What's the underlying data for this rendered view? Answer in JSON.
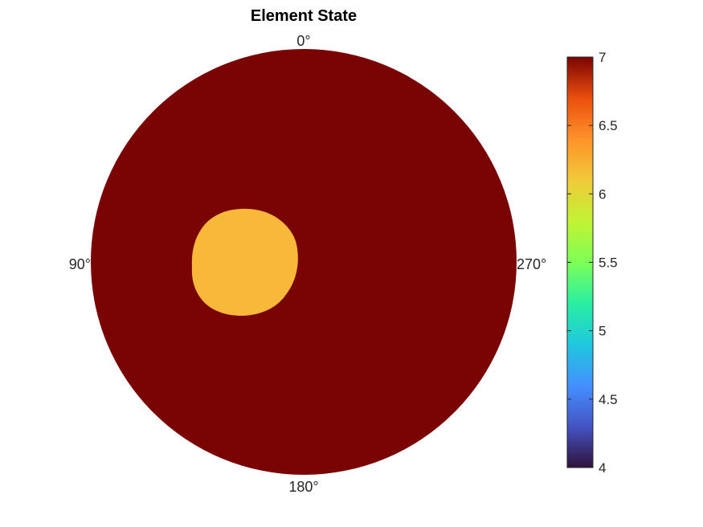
{
  "chart_data": {
    "type": "heatmap",
    "title": "Element State",
    "angle_labels": [
      "0°",
      "90°",
      "180°",
      "270°"
    ],
    "regions": [
      {
        "shape": "disc",
        "value": 7
      },
      {
        "shape": "inclusion",
        "value": 6
      }
    ],
    "colorbar": {
      "location": "right",
      "colormap": "turbo",
      "range": [
        4,
        7
      ],
      "ticks": [
        4,
        4.5,
        5,
        5.5,
        6,
        6.5,
        7
      ],
      "tick_labels": [
        "4",
        "4.5",
        "5",
        "5.5",
        "6",
        "6.5",
        "7"
      ]
    },
    "colors": {
      "state_7": "#7a0403",
      "state_6": "#f8b93a"
    }
  }
}
